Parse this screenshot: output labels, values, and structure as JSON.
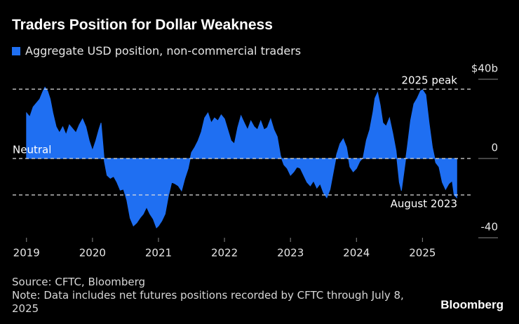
{
  "chart_data": {
    "type": "area",
    "title": "Traders Position for Dollar Weakness",
    "source": "Source: CFTC, Bloomberg",
    "note": "Note: Data includes net futures positions recorded by CFTC through July 8, 2025",
    "brand": "Bloomberg",
    "x": [
      2019.0,
      2019.05,
      2019.1,
      2019.15,
      2019.2,
      2019.25,
      2019.28,
      2019.32,
      2019.36,
      2019.4,
      2019.45,
      2019.5,
      2019.55,
      2019.6,
      2019.65,
      2019.7,
      2019.75,
      2019.8,
      2019.85,
      2019.9,
      2019.95,
      2020.0,
      2020.05,
      2020.1,
      2020.13,
      2020.18,
      2020.22,
      2020.27,
      2020.32,
      2020.37,
      2020.42,
      2020.47,
      2020.52,
      2020.57,
      2020.62,
      2020.67,
      2020.72,
      2020.77,
      2020.82,
      2020.87,
      2020.92,
      2020.97,
      2021.0,
      2021.05,
      2021.1,
      2021.15,
      2021.2,
      2021.25,
      2021.3,
      2021.35,
      2021.4,
      2021.45,
      2021.5,
      2021.55,
      2021.6,
      2021.65,
      2021.7,
      2021.75,
      2021.8,
      2021.85,
      2021.9,
      2021.95,
      2022.0,
      2022.05,
      2022.1,
      2022.15,
      2022.2,
      2022.25,
      2022.3,
      2022.35,
      2022.4,
      2022.45,
      2022.5,
      2022.55,
      2022.6,
      2022.65,
      2022.7,
      2022.75,
      2022.8,
      2022.85,
      2022.9,
      2022.95,
      2023.0,
      2023.05,
      2023.1,
      2023.15,
      2023.2,
      2023.25,
      2023.3,
      2023.35,
      2023.4,
      2023.45,
      2023.5,
      2023.55,
      2023.6,
      2023.65,
      2023.7,
      2023.75,
      2023.8,
      2023.85,
      2023.9,
      2023.95,
      2024.0,
      2024.05,
      2024.1,
      2024.15,
      2024.2,
      2024.25,
      2024.28,
      2024.32,
      2024.36,
      2024.4,
      2024.45,
      2024.5,
      2024.55,
      2024.6,
      2024.65,
      2024.68,
      2024.72,
      2024.77,
      2024.82,
      2024.87,
      2024.92,
      2024.97,
      2025.0,
      2025.05,
      2025.1,
      2025.15,
      2025.2,
      2025.25,
      2025.3,
      2025.35,
      2025.4,
      2025.45,
      2025.48,
      2025.52
    ],
    "series": [
      {
        "name": "Aggregate USD position, non-commercial traders",
        "color": "#1f6ff2",
        "values": [
          23,
          21,
          26,
          28,
          30,
          34,
          36,
          34,
          30,
          23,
          16,
          13,
          16,
          12,
          17,
          15,
          13,
          17,
          20,
          16,
          9,
          4,
          9,
          15,
          18,
          -1.5,
          -8.5,
          -10,
          -9,
          -12,
          -16,
          -15.5,
          -21,
          -30,
          -34,
          -32.5,
          -30,
          -28,
          -24.5,
          -28,
          -30.5,
          -35,
          -34,
          -31.5,
          -28,
          -19,
          -12,
          -12.7,
          -13.8,
          -16.3,
          -10,
          -5,
          3,
          5.7,
          9,
          13.5,
          20.5,
          23,
          18,
          20.5,
          19,
          22,
          20,
          14.5,
          9,
          7.4,
          15.6,
          21.6,
          18,
          14.5,
          19,
          16,
          14.5,
          19,
          14.5,
          15.6,
          20,
          14.5,
          11,
          1.4,
          -3.2,
          -5,
          -8.5,
          -6.7,
          -4.2,
          -5,
          -8.5,
          -12,
          -13.8,
          -11.3,
          -14.9,
          -12.7,
          -17.3,
          -19.8,
          -15.6,
          -6.7,
          2.1,
          7.4,
          9.9,
          5.7,
          -4.2,
          -6.7,
          -5,
          -1.4,
          0.4,
          9.2,
          14.5,
          23.4,
          30.4,
          33.3,
          26.9,
          18,
          16.3,
          20.5,
          12.7,
          3.9,
          -12,
          -16.3,
          -6.7,
          5.7,
          19.1,
          27.6,
          30.4,
          34,
          34.7,
          32.2,
          18,
          5.7,
          -2.1,
          -4.2,
          -12,
          -15.6,
          -12.7,
          -11.3,
          -18.4,
          -19.8
        ]
      }
    ],
    "xlim": [
      2018.79,
      2025.74
    ],
    "xticks": [
      2019,
      2020,
      2021,
      2022,
      2023,
      2024,
      2025
    ],
    "ylim": [
      -40,
      40
    ],
    "yticks": [
      {
        "value": 40,
        "label": "$40b"
      },
      0,
      -40
    ],
    "annotations": [
      {
        "label": "2025 peak",
        "value": 35
      },
      {
        "label": "Neutral",
        "value": 0
      },
      {
        "label": "August 2023",
        "value": -18.4
      }
    ]
  }
}
